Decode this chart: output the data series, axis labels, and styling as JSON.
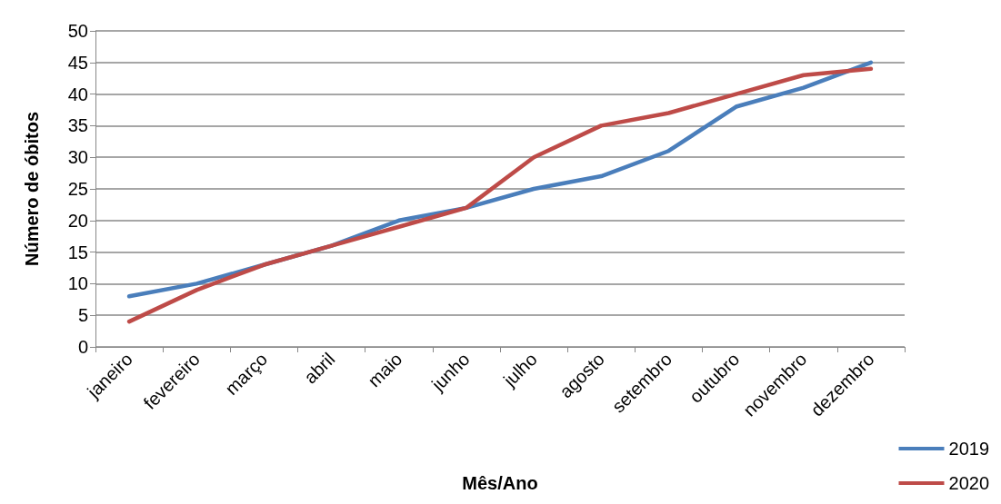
{
  "chart_data": {
    "type": "line",
    "xlabel": "Mês/Ano",
    "ylabel": "Número de óbitos",
    "categories": [
      "janeiro",
      "fevereiro",
      "março",
      "abril",
      "maio",
      "junho",
      "julho",
      "agosto",
      "setembro",
      "outubro",
      "novembro",
      "dezembro"
    ],
    "series": [
      {
        "name": "2019",
        "color": "#4a7ebb",
        "values": [
          8,
          10,
          13,
          16,
          20,
          22,
          25,
          27,
          31,
          38,
          41,
          45
        ]
      },
      {
        "name": "2020",
        "color": "#be4b48",
        "values": [
          4,
          9,
          13,
          16,
          19,
          22,
          30,
          35,
          37,
          40,
          43,
          44
        ]
      }
    ],
    "ylim": [
      0,
      50
    ],
    "yticks": [
      0,
      5,
      10,
      15,
      20,
      25,
      30,
      35,
      40,
      45,
      50
    ],
    "grid": "y",
    "legend": "bottom right",
    "marker": "none",
    "line_style": "solid"
  }
}
